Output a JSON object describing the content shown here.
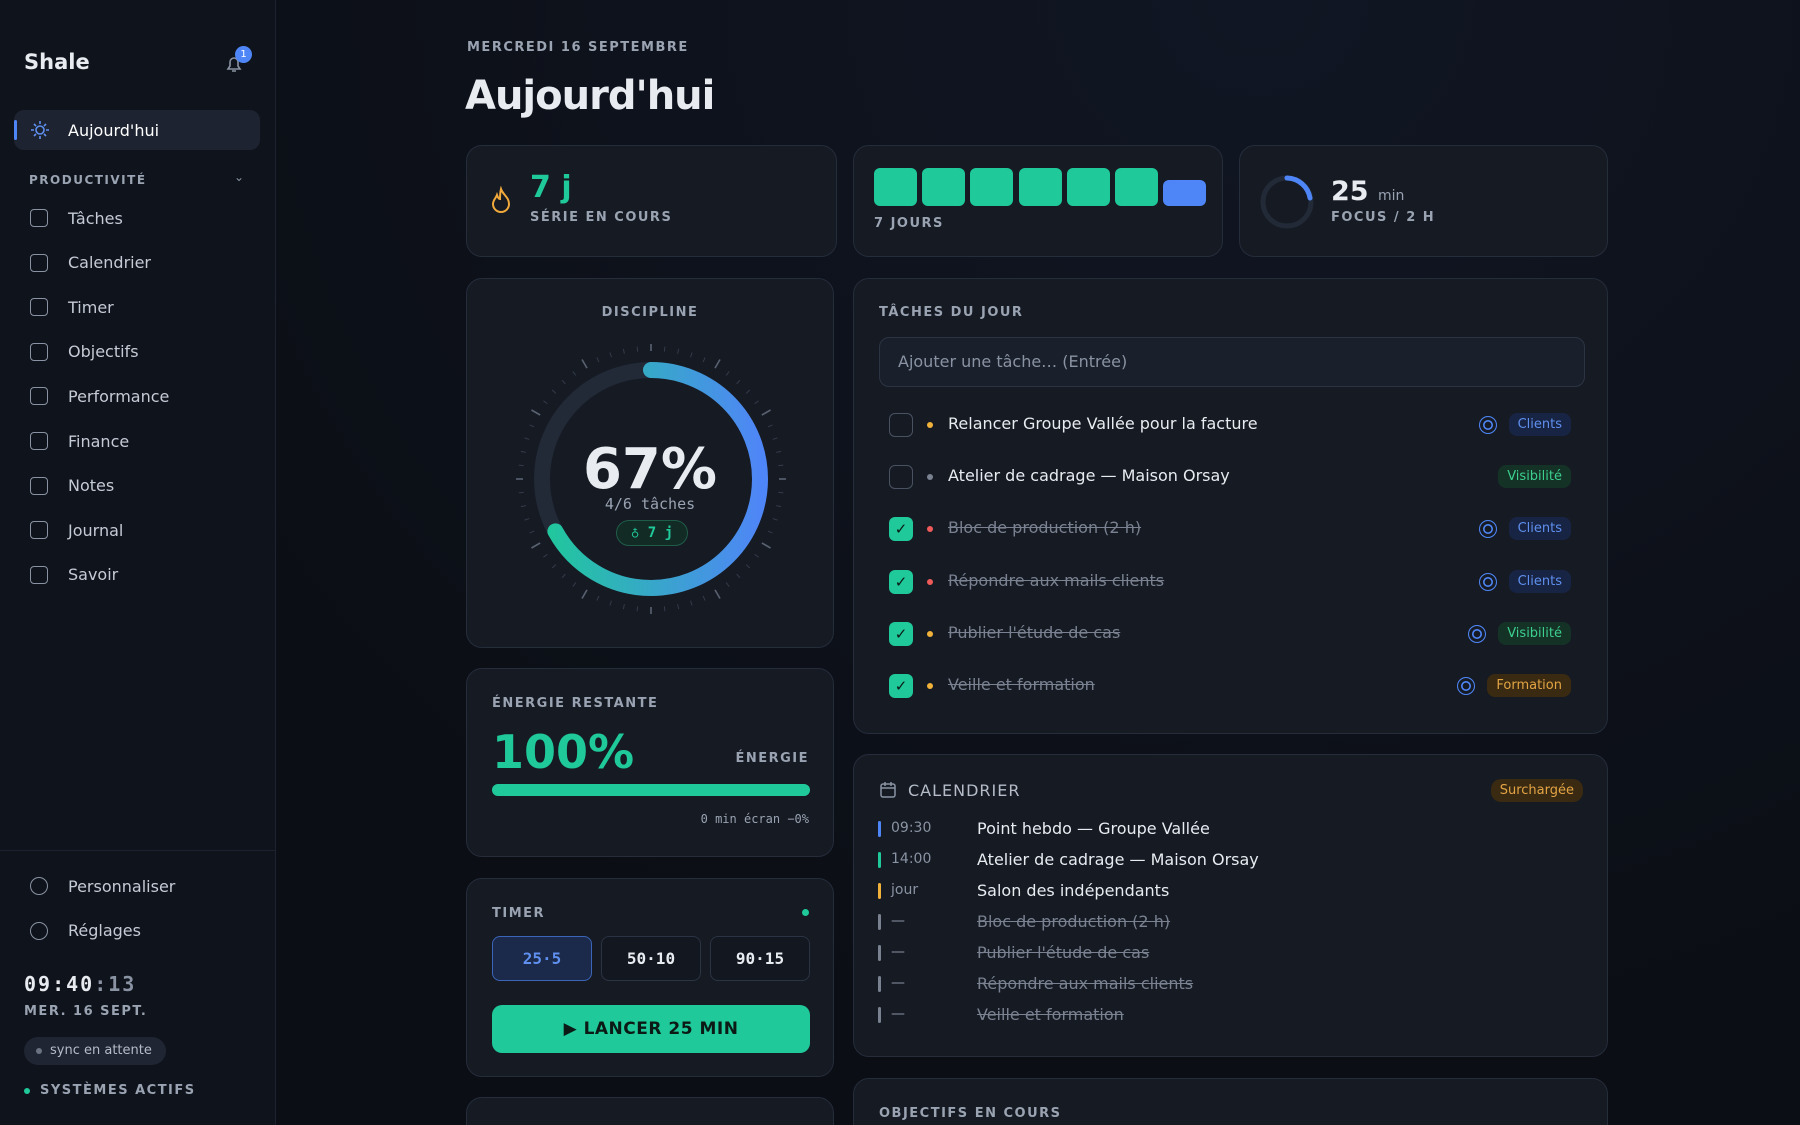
{
  "sidebar": {
    "brand": "Shale",
    "notifications": "1",
    "active": "Aujourd'hui",
    "section": "PRODUCTIVITÉ",
    "nav": [
      "Tâches",
      "Calendrier",
      "Timer",
      "Objectifs",
      "Performance",
      "Finance",
      "Notes",
      "Journal",
      "Savoir"
    ],
    "footer": [
      "Personnaliser",
      "Réglages"
    ],
    "clock": {
      "hm": "09:40",
      "sec": ":13"
    },
    "date": "MER. 16 SEPT.",
    "sync": "sync en attente",
    "status": "SYSTÈMES ACTIFS"
  },
  "header": {
    "date": "MERCREDI 16 SEPTEMBRE",
    "title": "Aujourd'hui"
  },
  "stats": {
    "streak": {
      "value": "7 j",
      "label": "SÉRIE EN COURS"
    },
    "week": {
      "label": "7 JOURS"
    },
    "focus": {
      "value": "25",
      "unit": "min",
      "label": "FOCUS / 2 H"
    }
  },
  "discipline": {
    "title": "DISCIPLINE",
    "percent": {
      "value": 67,
      "label": "67%"
    },
    "tasks": "4/6 tâches",
    "streak": "7 j"
  },
  "energy": {
    "title": "ÉNERGIE RESTANTE",
    "percent": {
      "value": 100,
      "label": "100%"
    },
    "caption": "ÉNERGIE",
    "screen": "0 min écran −0%"
  },
  "timer": {
    "title": "TIMER",
    "presets": [
      "25·5",
      "50·10",
      "90·15"
    ],
    "start": "LANCER 25 MIN"
  },
  "tasks": {
    "title": "TÂCHES DU JOUR",
    "placeholder": "Ajouter une tâche…  (Entrée)",
    "items": [
      {
        "label": "Relancer Groupe Vallée pour la facture",
        "tag": "Clients",
        "tag_color": "blue",
        "priority": "amber",
        "done": false,
        "goal": true
      },
      {
        "label": "Atelier de cadrage — Maison Orsay",
        "tag": "Visibilité",
        "tag_color": "green",
        "priority": "gray",
        "done": false,
        "goal": false
      },
      {
        "label": "Bloc de production (2 h)",
        "tag": "Clients",
        "tag_color": "blue",
        "priority": "red",
        "done": true,
        "goal": true
      },
      {
        "label": "Répondre aux mails clients",
        "tag": "Clients",
        "tag_color": "blue",
        "priority": "red",
        "done": true,
        "goal": true
      },
      {
        "label": "Publier l'étude de cas",
        "tag": "Visibilité",
        "tag_color": "green",
        "priority": "amber",
        "done": true,
        "goal": true
      },
      {
        "label": "Veille et formation",
        "tag": "Formation",
        "tag_color": "amber",
        "priority": "amber",
        "done": true,
        "goal": true
      }
    ]
  },
  "calendar": {
    "title": "CALENDRIER",
    "badge": "Surchargée",
    "events": [
      {
        "time": "09:30",
        "label": "Point hebdo — Groupe Vallée",
        "color": "blue",
        "done": false
      },
      {
        "time": "14:00",
        "label": "Atelier de cadrage — Maison Orsay",
        "color": "green",
        "done": false
      },
      {
        "time": "jour",
        "label": "Salon des indépendants",
        "color": "amber",
        "done": false
      },
      {
        "time": "—",
        "label": "Bloc de production (2 h)",
        "color": "gray",
        "done": true
      },
      {
        "time": "—",
        "label": "Publier l'étude de cas",
        "color": "gray",
        "done": true
      },
      {
        "time": "—",
        "label": "Répondre aux mails clients",
        "color": "gray",
        "done": true
      },
      {
        "time": "—",
        "label": "Veille et formation",
        "color": "gray",
        "done": true
      }
    ]
  },
  "objectives": {
    "title": "OBJECTIFS EN COURS"
  }
}
